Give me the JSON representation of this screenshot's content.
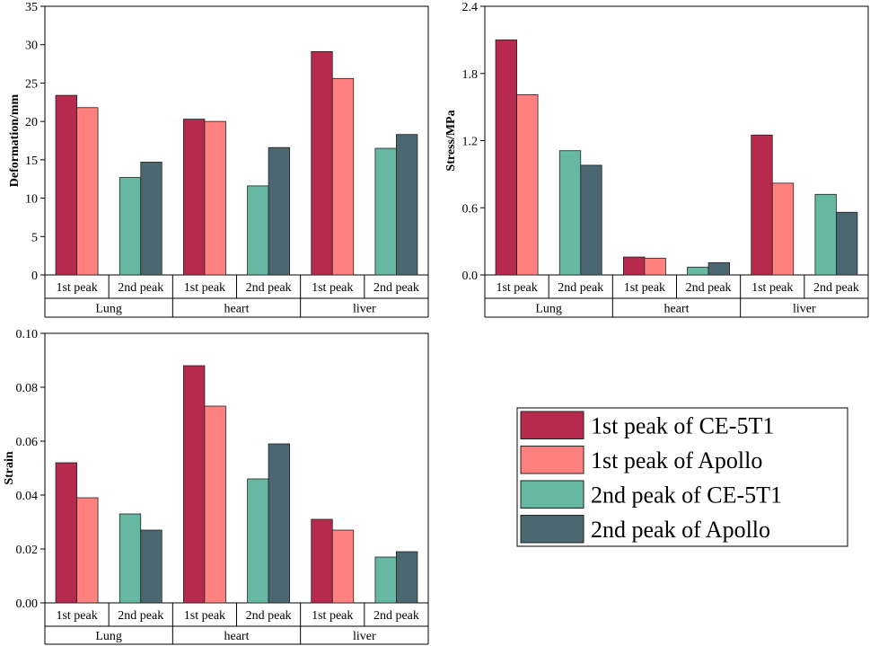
{
  "colors": {
    "first_ce5t1": "#B7294D",
    "first_apollo": "#FE8180",
    "second_ce5t1": "#66B8A2",
    "second_apollo": "#4B6770"
  },
  "legend": {
    "entries": [
      {
        "label": "1st peak of CE-5T1",
        "color_key": "first_ce5t1"
      },
      {
        "label": "1st peak of Apollo",
        "color_key": "first_apollo"
      },
      {
        "label": "2nd peak of CE-5T1",
        "color_key": "second_ce5t1"
      },
      {
        "label": "2nd peak of Apollo",
        "color_key": "second_apollo"
      }
    ]
  },
  "chart_data": [
    {
      "id": "deformation",
      "type": "bar",
      "title": "",
      "ylabel": "Deformation/mm",
      "xlabel": "",
      "ylim": [
        0,
        35
      ],
      "yticks": [
        "0",
        "5",
        "10",
        "15",
        "20",
        "25",
        "30",
        "35"
      ],
      "tick_values": [
        0,
        5,
        10,
        15,
        20,
        25,
        30,
        35
      ],
      "groups": [
        "Lung",
        "heart",
        "liver"
      ],
      "subgroups": [
        "1st peak",
        "2nd peak"
      ],
      "series": [
        {
          "name": "1st peak of CE-5T1",
          "color_key": "first_ce5t1",
          "subgroup": 0,
          "values": [
            23.4,
            20.3,
            29.1
          ]
        },
        {
          "name": "1st peak of Apollo",
          "color_key": "first_apollo",
          "subgroup": 0,
          "values": [
            21.8,
            20.0,
            25.6
          ]
        },
        {
          "name": "2nd peak of CE-5T1",
          "color_key": "second_ce5t1",
          "subgroup": 1,
          "values": [
            12.7,
            11.6,
            16.5
          ]
        },
        {
          "name": "2nd peak of Apollo",
          "color_key": "second_apollo",
          "subgroup": 1,
          "values": [
            14.7,
            16.6,
            18.3
          ]
        }
      ]
    },
    {
      "id": "stress",
      "type": "bar",
      "title": "",
      "ylabel": "Stress/MPa",
      "xlabel": "",
      "ylim": [
        0,
        2.4
      ],
      "yticks": [
        "0.0",
        "0.6",
        "1.2",
        "1.8",
        "2.4"
      ],
      "tick_values": [
        0,
        0.6,
        1.2,
        1.8,
        2.4
      ],
      "groups": [
        "Lung",
        "heart",
        "liver"
      ],
      "subgroups": [
        "1st peak",
        "2nd peak"
      ],
      "series": [
        {
          "name": "1st peak of CE-5T1",
          "color_key": "first_ce5t1",
          "subgroup": 0,
          "values": [
            2.1,
            0.16,
            1.25
          ]
        },
        {
          "name": "1st peak of Apollo",
          "color_key": "first_apollo",
          "subgroup": 0,
          "values": [
            1.61,
            0.15,
            0.82
          ]
        },
        {
          "name": "2nd peak of CE-5T1",
          "color_key": "second_ce5t1",
          "subgroup": 1,
          "values": [
            1.11,
            0.07,
            0.72
          ]
        },
        {
          "name": "2nd peak of Apollo",
          "color_key": "second_apollo",
          "subgroup": 1,
          "values": [
            0.98,
            0.11,
            0.56
          ]
        }
      ]
    },
    {
      "id": "strain",
      "type": "bar",
      "title": "",
      "ylabel": "Strain",
      "xlabel": "",
      "ylim": [
        0,
        0.1
      ],
      "yticks": [
        "0.00",
        "0.02",
        "0.04",
        "0.06",
        "0.08",
        "0.10"
      ],
      "tick_values": [
        0,
        0.02,
        0.04,
        0.06,
        0.08,
        0.1
      ],
      "groups": [
        "Lung",
        "heart",
        "liver"
      ],
      "subgroups": [
        "1st peak",
        "2nd peak"
      ],
      "series": [
        {
          "name": "1st peak of CE-5T1",
          "color_key": "first_ce5t1",
          "subgroup": 0,
          "values": [
            0.052,
            0.088,
            0.031
          ]
        },
        {
          "name": "1st peak of Apollo",
          "color_key": "first_apollo",
          "subgroup": 0,
          "values": [
            0.039,
            0.073,
            0.027
          ]
        },
        {
          "name": "2nd peak of CE-5T1",
          "color_key": "second_ce5t1",
          "subgroup": 1,
          "values": [
            0.033,
            0.046,
            0.017
          ]
        },
        {
          "name": "2nd peak of Apollo",
          "color_key": "second_apollo",
          "subgroup": 1,
          "values": [
            0.027,
            0.059,
            0.019
          ]
        }
      ]
    }
  ]
}
